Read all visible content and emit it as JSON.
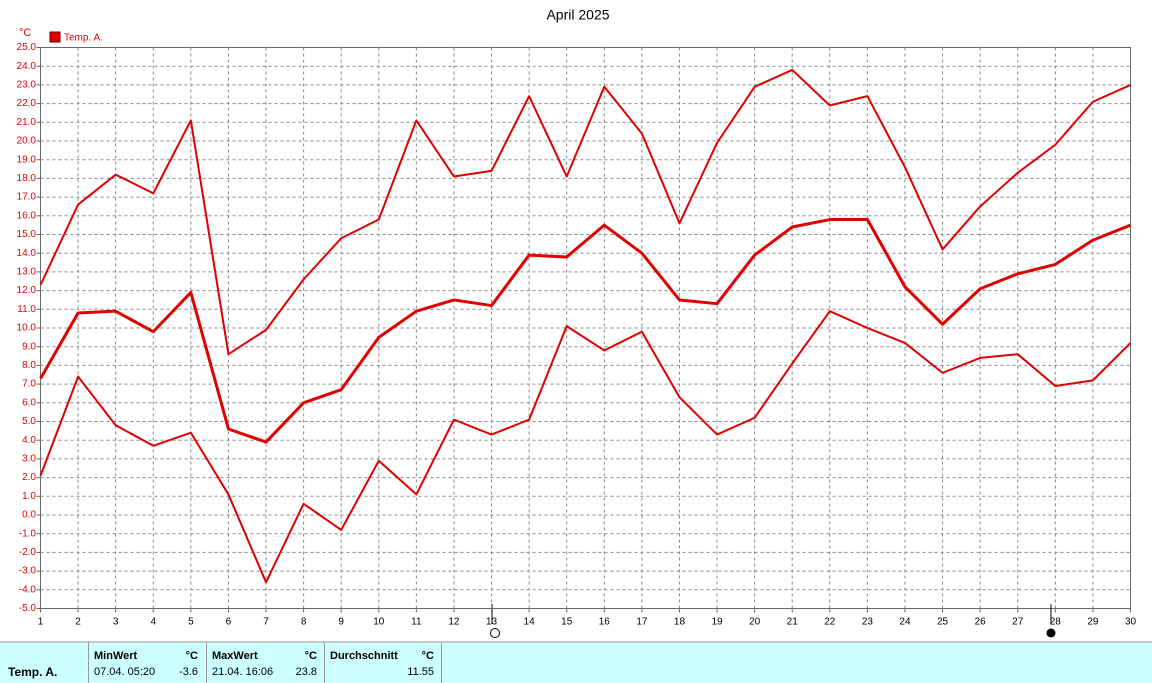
{
  "chart_data": {
    "type": "line",
    "title": "April 2025",
    "y_unit": "°C",
    "x": [
      1,
      2,
      3,
      4,
      5,
      6,
      7,
      8,
      9,
      10,
      11,
      12,
      13,
      14,
      15,
      16,
      17,
      18,
      19,
      20,
      21,
      22,
      23,
      24,
      25,
      26,
      27,
      28,
      29,
      30
    ],
    "xlim": [
      1,
      30
    ],
    "xticks": [
      1,
      2,
      3,
      4,
      5,
      6,
      7,
      8,
      9,
      10,
      11,
      12,
      13,
      14,
      15,
      16,
      17,
      18,
      19,
      20,
      21,
      22,
      23,
      24,
      25,
      26,
      27,
      28,
      29,
      30
    ],
    "ylim": [
      -5,
      25
    ],
    "yticks": [
      {
        "value": -5,
        "label": "-5.0"
      },
      {
        "value": -4,
        "label": "-4.0"
      },
      {
        "value": -3,
        "label": "-3.0"
      },
      {
        "value": -2,
        "label": "-2.0"
      },
      {
        "value": -1,
        "label": "-1.0"
      },
      {
        "value": 0,
        "label": "0.0"
      },
      {
        "value": 1,
        "label": "1.0"
      },
      {
        "value": 2,
        "label": "2.0"
      },
      {
        "value": 3,
        "label": "3.0"
      },
      {
        "value": 4,
        "label": "4.0"
      },
      {
        "value": 5,
        "label": "5.0"
      },
      {
        "value": 6,
        "label": "6.0"
      },
      {
        "value": 7,
        "label": "7.0"
      },
      {
        "value": 8,
        "label": "8.0"
      },
      {
        "value": 9,
        "label": "9.0"
      },
      {
        "value": 10,
        "label": "10.0"
      },
      {
        "value": 11,
        "label": "11.0"
      },
      {
        "value": 12,
        "label": "12.0"
      },
      {
        "value": 13,
        "label": "13.0"
      },
      {
        "value": 14,
        "label": "14.0"
      },
      {
        "value": 15,
        "label": "15.0"
      },
      {
        "value": 16,
        "label": "16.0"
      },
      {
        "value": 17,
        "label": "17.0"
      },
      {
        "value": 18,
        "label": "18.0"
      },
      {
        "value": 19,
        "label": "19.0"
      },
      {
        "value": 20,
        "label": "20.0"
      },
      {
        "value": 21,
        "label": "21.0"
      },
      {
        "value": 22,
        "label": "22.0"
      },
      {
        "value": 23,
        "label": "23.0"
      },
      {
        "value": 24,
        "label": "24.0"
      },
      {
        "value": 25,
        "label": "25.0"
      }
    ],
    "grid": true,
    "series": [
      {
        "name": "Temp. A.",
        "color": "#e00000",
        "line_width": 3,
        "values": [
          7.3,
          10.8,
          10.9,
          9.8,
          11.9,
          4.6,
          3.9,
          6.0,
          6.7,
          9.5,
          10.9,
          11.5,
          11.2,
          13.9,
          13.8,
          15.5,
          14.0,
          11.5,
          11.3,
          13.9,
          15.4,
          15.8,
          15.8,
          12.2,
          10.2,
          12.1,
          12.9,
          13.4,
          14.7,
          15.5
        ]
      },
      {
        "color": "#e00000",
        "line_width": 2,
        "values": [
          12.3,
          16.6,
          18.2,
          17.2,
          21.1,
          8.6,
          9.9,
          12.6,
          14.8,
          15.8,
          21.1,
          18.1,
          18.4,
          22.4,
          18.1,
          22.9,
          20.4,
          15.6,
          19.9,
          22.9,
          23.8,
          21.9,
          22.4,
          18.6,
          14.2,
          16.5,
          18.3,
          19.8,
          22.1,
          23.0
        ]
      },
      {
        "color": "#e00000",
        "line_width": 2,
        "values": [
          2.1,
          7.4,
          4.8,
          3.7,
          4.4,
          1.1,
          -3.6,
          0.6,
          -0.8,
          2.9,
          1.1,
          5.1,
          4.3,
          5.1,
          10.1,
          8.8,
          9.8,
          6.3,
          4.3,
          5.2,
          8.1,
          10.9,
          10.0,
          9.2,
          7.6,
          8.4,
          8.6,
          6.9,
          7.2,
          9.2
        ]
      }
    ]
  },
  "stats": {
    "row_label": "Temp. A.",
    "min": {
      "title": "MinWert",
      "unit": "°C",
      "time": "07.04.  05:20",
      "value": -3.6
    },
    "max": {
      "title": "MaxWert",
      "unit": "°C",
      "time": "21.04.  16:06",
      "value": 23.8
    },
    "avg": {
      "title": "Durchschnitt",
      "unit": "°C",
      "value": 11.55
    }
  }
}
